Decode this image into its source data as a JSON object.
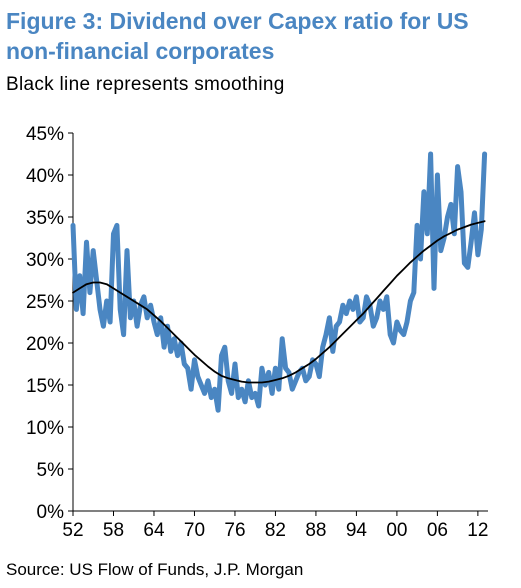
{
  "header": {
    "title": "Figure 3: Dividend over Capex ratio for US non-financial corporates",
    "subtitle": "Black line represents smoothing"
  },
  "footer": {
    "source": "Source: US Flow of Funds, J.P. Morgan"
  },
  "colors": {
    "series_ratio": "#4a86c2",
    "series_smooth": "#000000",
    "title": "#4a86c2"
  },
  "chart_data": {
    "type": "line",
    "title": "Figure 3: Dividend over Capex ratio for US non-financial corporates",
    "subtitle": "Black line represents smoothing",
    "xlabel": "",
    "ylabel": "",
    "x_ticks": [
      "52",
      "58",
      "64",
      "70",
      "76",
      "82",
      "88",
      "94",
      "00",
      "06",
      "12"
    ],
    "y_ticks": [
      "0%",
      "5%",
      "10%",
      "15%",
      "20%",
      "25%",
      "30%",
      "35%",
      "40%",
      "45%"
    ],
    "xlim": [
      1952,
      2013.5
    ],
    "ylim": [
      0,
      45
    ],
    "grid": false,
    "legend": "none",
    "series": [
      {
        "style": "thick-blue-line",
        "x": [
          1952.0,
          1952.5,
          1953.0,
          1953.5,
          1954.0,
          1954.5,
          1955.0,
          1955.5,
          1956.0,
          1956.5,
          1957.0,
          1957.5,
          1958.0,
          1958.5,
          1959.0,
          1959.5,
          1960.0,
          1960.5,
          1961.0,
          1961.5,
          1962.0,
          1962.5,
          1963.0,
          1963.5,
          1964.0,
          1964.5,
          1965.0,
          1965.5,
          1966.0,
          1966.5,
          1967.0,
          1967.5,
          1968.0,
          1968.5,
          1969.0,
          1969.5,
          1970.0,
          1970.5,
          1971.0,
          1971.5,
          1972.0,
          1972.5,
          1973.0,
          1973.5,
          1974.0,
          1974.5,
          1975.0,
          1975.5,
          1976.0,
          1976.5,
          1977.0,
          1977.5,
          1978.0,
          1978.5,
          1979.0,
          1979.5,
          1980.0,
          1980.5,
          1981.0,
          1981.5,
          1982.0,
          1982.5,
          1983.0,
          1983.5,
          1984.0,
          1984.5,
          1985.0,
          1985.5,
          1986.0,
          1986.5,
          1987.0,
          1987.5,
          1988.0,
          1988.5,
          1989.0,
          1989.5,
          1990.0,
          1990.5,
          1991.0,
          1991.5,
          1992.0,
          1992.5,
          1993.0,
          1993.5,
          1994.0,
          1994.5,
          1995.0,
          1995.5,
          1996.0,
          1996.5,
          1997.0,
          1997.5,
          1998.0,
          1998.5,
          1999.0,
          1999.5,
          2000.0,
          2000.5,
          2001.0,
          2001.5,
          2002.0,
          2002.5,
          2003.0,
          2003.5,
          2004.0,
          2004.5,
          2005.0,
          2005.5,
          2006.0,
          2006.5,
          2007.0,
          2007.5,
          2008.0,
          2008.5,
          2009.0,
          2009.5,
          2010.0,
          2010.5,
          2011.0,
          2011.5,
          2012.0,
          2012.5,
          2013.0
        ],
        "values": [
          34.0,
          24.0,
          28.0,
          23.5,
          32.0,
          26.0,
          31.0,
          27.5,
          24.0,
          22.0,
          25.0,
          22.5,
          33.0,
          34.0,
          24.0,
          21.0,
          31.0,
          23.0,
          25.0,
          22.0,
          24.5,
          25.5,
          23.0,
          24.5,
          22.5,
          21.0,
          23.0,
          19.5,
          22.0,
          19.0,
          20.5,
          18.5,
          20.0,
          17.5,
          17.0,
          14.5,
          18.0,
          16.0,
          15.0,
          14.0,
          15.5,
          13.5,
          14.5,
          12.0,
          18.5,
          19.5,
          15.5,
          14.0,
          17.5,
          13.5,
          14.5,
          13.0,
          15.5,
          13.5,
          14.0,
          12.5,
          17.0,
          15.0,
          16.5,
          14.0,
          17.0,
          14.5,
          20.5,
          17.0,
          16.5,
          14.5,
          15.5,
          16.5,
          17.0,
          15.5,
          16.0,
          18.0,
          17.5,
          16.0,
          19.5,
          21.0,
          23.0,
          19.0,
          22.0,
          22.5,
          24.5,
          23.5,
          25.0,
          24.0,
          25.5,
          22.5,
          23.0,
          25.5,
          24.5,
          22.0,
          23.0,
          25.0,
          24.0,
          25.5,
          21.0,
          20.0,
          22.5,
          21.5,
          21.0,
          22.5,
          25.0,
          26.0,
          34.0,
          30.0,
          38.0,
          33.0,
          42.5,
          26.5,
          40.0,
          31.0,
          32.5,
          35.0,
          36.5,
          33.0,
          41.0,
          38.0,
          29.5,
          29.0,
          32.0,
          35.5,
          30.5,
          33.5,
          42.5
        ]
      },
      {
        "style": "thin-black-smoothing-line",
        "x": [
          1952.0,
          1953.0,
          1954.0,
          1955.0,
          1956.0,
          1957.0,
          1958.0,
          1959.0,
          1960.0,
          1961.0,
          1962.0,
          1963.0,
          1964.0,
          1965.0,
          1966.0,
          1967.0,
          1968.0,
          1969.0,
          1970.0,
          1971.0,
          1972.0,
          1973.0,
          1974.0,
          1975.0,
          1976.0,
          1977.0,
          1978.0,
          1979.0,
          1980.0,
          1981.0,
          1982.0,
          1983.0,
          1984.0,
          1985.0,
          1986.0,
          1987.0,
          1988.0,
          1989.0,
          1990.0,
          1991.0,
          1992.0,
          1993.0,
          1994.0,
          1995.0,
          1996.0,
          1997.0,
          1998.0,
          1999.0,
          2000.0,
          2001.0,
          2002.0,
          2003.0,
          2004.0,
          2005.0,
          2006.0,
          2007.0,
          2008.0,
          2009.0,
          2010.0,
          2011.0,
          2012.0,
          2013.0
        ],
        "values": [
          26.0,
          26.5,
          27.0,
          27.2,
          27.2,
          27.0,
          26.5,
          26.0,
          25.5,
          25.0,
          24.5,
          24.0,
          23.3,
          22.6,
          21.8,
          21.0,
          20.2,
          19.4,
          18.6,
          17.9,
          17.2,
          16.6,
          16.1,
          15.8,
          15.6,
          15.4,
          15.3,
          15.3,
          15.3,
          15.4,
          15.6,
          15.8,
          16.1,
          16.5,
          17.0,
          17.5,
          18.1,
          18.8,
          19.5,
          20.3,
          21.1,
          21.9,
          22.7,
          23.5,
          24.4,
          25.3,
          26.2,
          27.1,
          28.0,
          28.8,
          29.6,
          30.3,
          31.0,
          31.6,
          32.2,
          32.7,
          33.1,
          33.5,
          33.8,
          34.1,
          34.3,
          34.5
        ]
      }
    ]
  }
}
